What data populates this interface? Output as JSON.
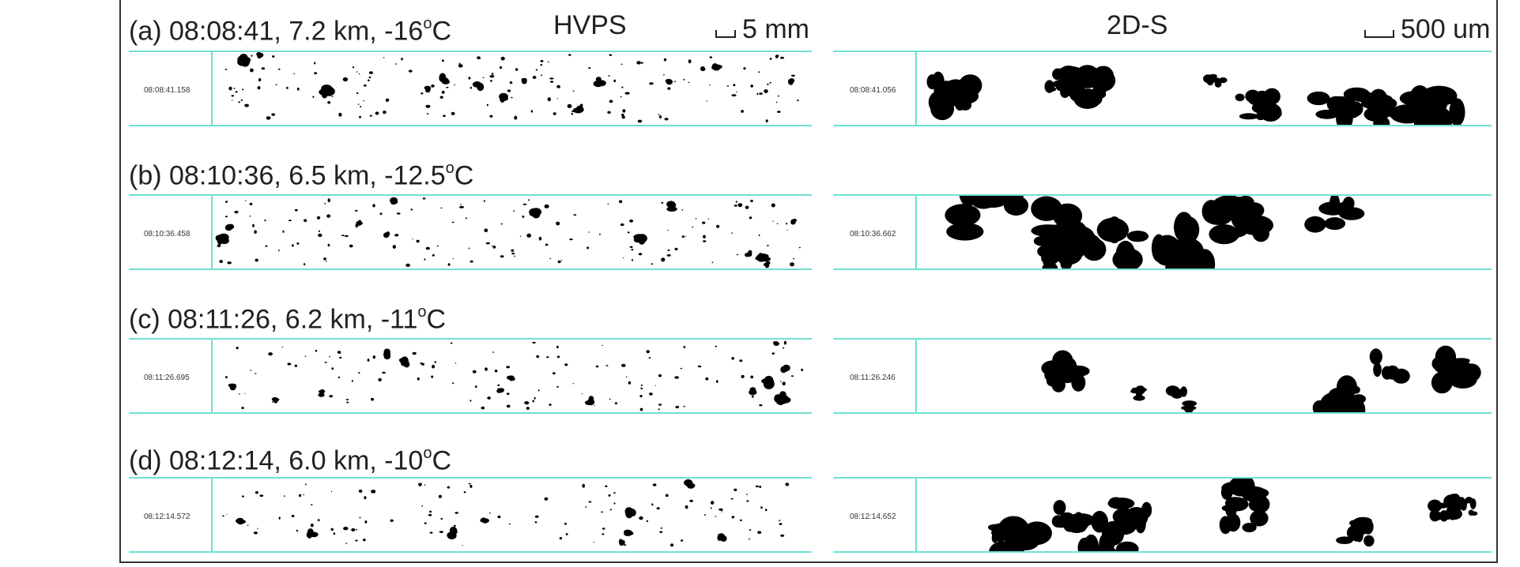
{
  "instruments": {
    "left": "HVPS",
    "right": "2D-S"
  },
  "scales": {
    "left": "5 mm",
    "right": "500 um"
  },
  "colors": {
    "strip_line": "#6fe0d3",
    "particle": "#000000",
    "frame": "#333333"
  },
  "rows": [
    {
      "label": "(a) 08:08:41, 7.2 km, -16",
      "unit": "o",
      "unit_after": "C",
      "left_stamp": "08:08:41.158",
      "right_stamp": "08:08:41.056"
    },
    {
      "label": "(b) 08:10:36, 6.5 km, -12.5",
      "unit": "o",
      "unit_after": "C",
      "left_stamp": "08:10:36.458",
      "right_stamp": "08:10:36.662"
    },
    {
      "label": "(c) 08:11:26, 6.2 km, -11",
      "unit": "o",
      "unit_after": "C",
      "left_stamp": "08:11:26.695",
      "right_stamp": "08:11:26.246"
    },
    {
      "label": "(d) 08:12:14, 6.0 km, -10",
      "unit": "o",
      "unit_after": "C",
      "left_stamp": "08:12:14.572",
      "right_stamp": "08:12:14.652"
    }
  ]
}
